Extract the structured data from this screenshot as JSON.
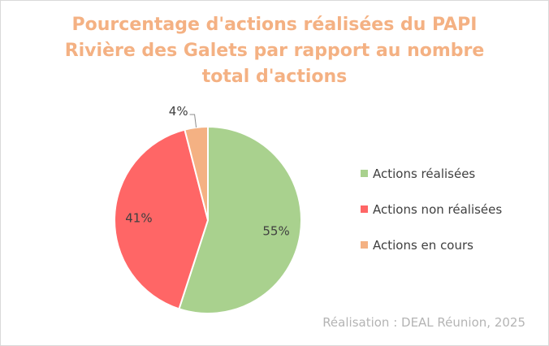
{
  "chart_data": {
    "type": "pie",
    "title_lines": [
      "Pourcentage d'actions réalisées du PAPI",
      "Rivière des Galets par rapport au nombre",
      "total d'actions"
    ],
    "slices": [
      {
        "label": "Actions réalisées",
        "value": 55,
        "display": "55%",
        "color": "#a9d18e"
      },
      {
        "label": "Actions non réalisées",
        "value": 41,
        "display": "41%",
        "color": "#ff6666"
      },
      {
        "label": "Actions en cours",
        "value": 4,
        "display": "4%",
        "color": "#f4b183"
      }
    ],
    "legend_position": "right"
  },
  "credit": "Réalisation : DEAL Réunion, 2025"
}
